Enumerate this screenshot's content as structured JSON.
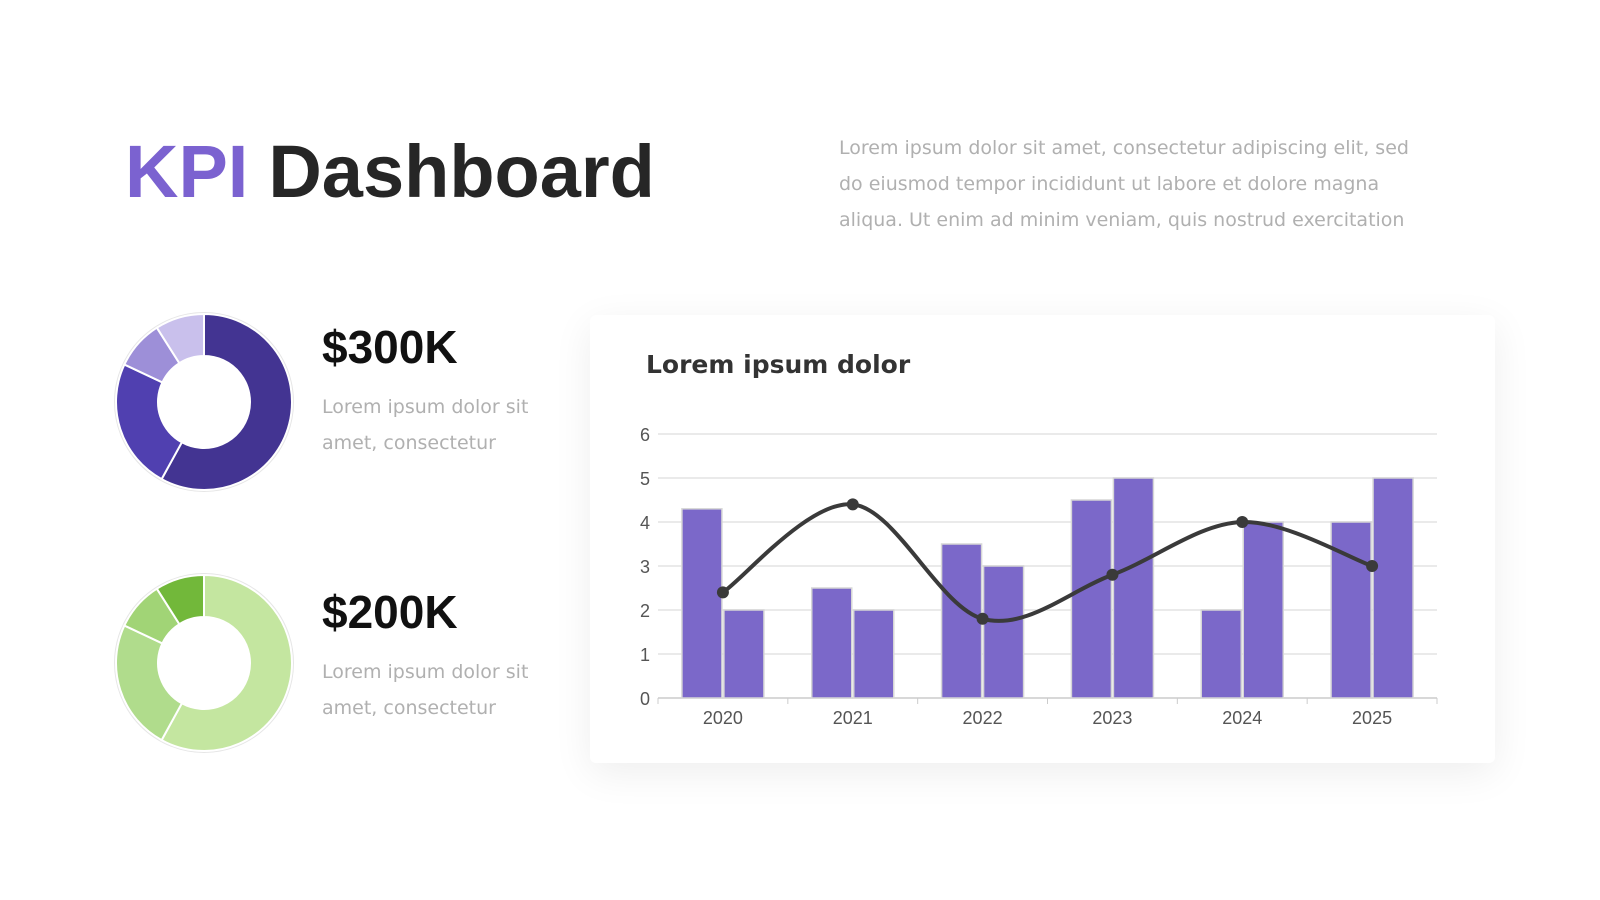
{
  "header": {
    "title_accent": "KPI",
    "title_rest": "Dashboard",
    "text_lines": [
      "Lorem ipsum dolor sit amet, consectetur adipiscing elit, sed",
      "do eiusmod tempor incididunt ut labore et dolore magna",
      "aliqua. Ut enim ad minim veniam, quis nostrud exercitation"
    ]
  },
  "kpis": [
    {
      "value": "$300K",
      "text_lines": [
        "Lorem ipsum dolor sit",
        "amet, consectetur"
      ]
    },
    {
      "value": "$200K",
      "text_lines": [
        "Lorem ipsum dolor sit",
        "amet, consectetur"
      ]
    }
  ],
  "chart_data": [
    {
      "type": "donut",
      "values": [
        58,
        24,
        9,
        9
      ],
      "colors": [
        "#433492",
        "#5040b0",
        "#9d8fd8",
        "#c9c0ec"
      ]
    },
    {
      "type": "donut",
      "values": [
        58,
        24,
        9,
        9
      ],
      "colors": [
        "#c4e6a0",
        "#b0dc8c",
        "#a1d476",
        "#72b83a"
      ]
    },
    {
      "type": "combo",
      "title": "Lorem ipsum dolor",
      "categories": [
        "2020",
        "2021",
        "2022",
        "2023",
        "2024",
        "2025"
      ],
      "series": [
        {
          "type": "bar",
          "color": "#7b68c9",
          "values": [
            4.3,
            2.5,
            3.5,
            4.5,
            2.0,
            4.0
          ]
        },
        {
          "type": "bar",
          "color": "#7b68c9",
          "values": [
            2.0,
            2.0,
            3.0,
            5.0,
            4.0,
            5.0
          ]
        },
        {
          "type": "line",
          "color": "#3a3a3a",
          "smooth": true,
          "values": [
            2.4,
            4.4,
            1.8,
            2.8,
            4.0,
            3.0
          ]
        }
      ],
      "ylim": [
        0,
        6
      ],
      "yticks": [
        0,
        1,
        2,
        3,
        4,
        5,
        6
      ],
      "grid": true
    }
  ]
}
